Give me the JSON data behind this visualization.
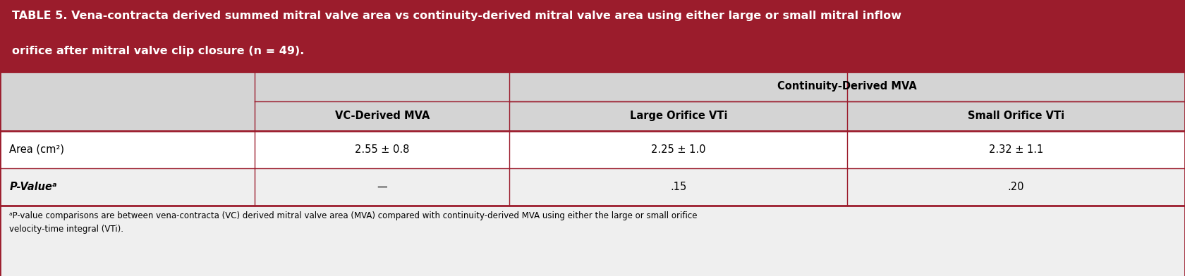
{
  "title_line1": "TABLE 5. Vena-contracta derived summed mitral valve area vs continuity-derived mitral valve area using either large or small mitral inflow",
  "title_line2": "orifice after mitral valve clip closure (n = 49).",
  "title_bg": "#9B1C2C",
  "title_text_color": "#FFFFFF",
  "header_bg": "#D4D4D4",
  "body_bg": "#EFEFEF",
  "row1_bg": "#FFFFFF",
  "border_color": "#9B1C2C",
  "col_header_span": "Continuity-Derived MVA",
  "col_headers": [
    "VC-Derived MVA",
    "Large Orifice VTi",
    "Small Orifice VTi"
  ],
  "row_labels": [
    "Area (cm²)",
    "P-Valueᵃ"
  ],
  "data": [
    [
      "2.55 ± 0.8",
      "2.25 ± 1.0",
      "2.32 ± 1.1"
    ],
    [
      "—",
      ".15",
      ".20"
    ]
  ],
  "footnote_super": "ᵃ",
  "footnote_body": "P-value comparisons are between vena-contracta (VC) derived mitral valve area (MVA) compared with continuity-derived MVA using either the large or small orifice\nvelocity-time integral (VTi).",
  "fig_width": 16.8,
  "fig_height": 3.92
}
